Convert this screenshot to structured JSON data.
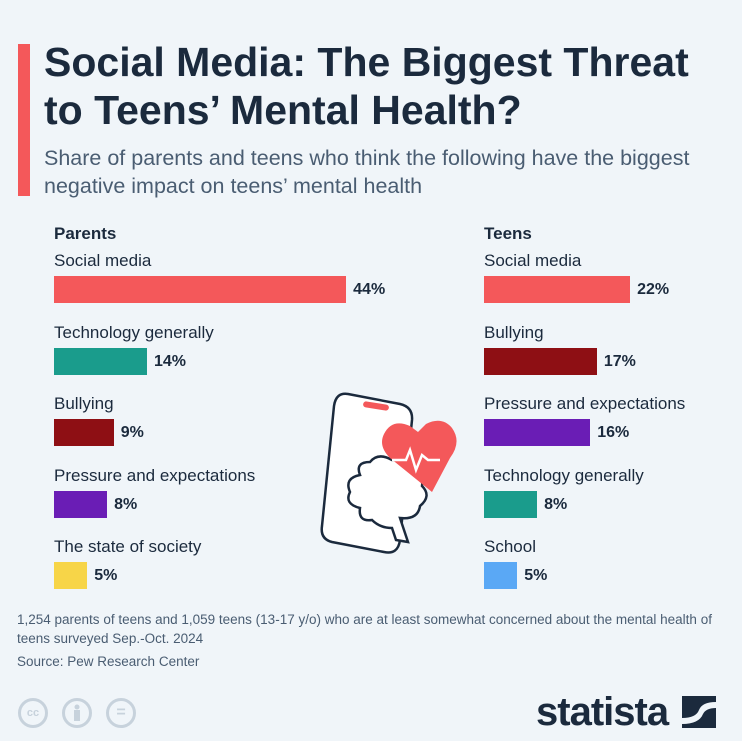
{
  "header": {
    "title": "Social Media: The Biggest Threat to Teens’ Mental Health?",
    "subtitle": "Share of parents and teens who think the following have the biggest negative impact on teens’ mental health",
    "accent_color": "#f4585a"
  },
  "chart_data": [
    {
      "type": "bar",
      "title": "Parents",
      "categories": [
        "Social media",
        "Technology generally",
        "Bullying",
        "Pressure and expectations",
        "The state of society"
      ],
      "values": [
        44,
        14,
        9,
        8,
        5
      ],
      "labels": [
        "44%",
        "14%",
        "9%",
        "8%",
        "5%"
      ],
      "colors": [
        "#f4585a",
        "#1a9c8c",
        "#8e0f14",
        "#6a1db5",
        "#f7d548"
      ],
      "unit": "%"
    },
    {
      "type": "bar",
      "title": "Teens",
      "categories": [
        "Social media",
        "Bullying",
        "Pressure and expectations",
        "Technology generally",
        "School"
      ],
      "values": [
        22,
        17,
        16,
        8,
        5
      ],
      "labels": [
        "22%",
        "17%",
        "16%",
        "8%",
        "5%"
      ],
      "colors": [
        "#f4585a",
        "#8e0f14",
        "#6a1db5",
        "#1a9c8c",
        "#5aa8f5"
      ],
      "unit": "%"
    }
  ],
  "footer": {
    "note": "1,254 parents of teens and 1,059 teens (13-17 y/o) who are at least somewhat concerned about the mental health of teens surveyed Sep.-Oct. 2024",
    "source": "Source: Pew Research Center",
    "cc_label": "cc",
    "equals_label": "=",
    "logo": "statista"
  }
}
